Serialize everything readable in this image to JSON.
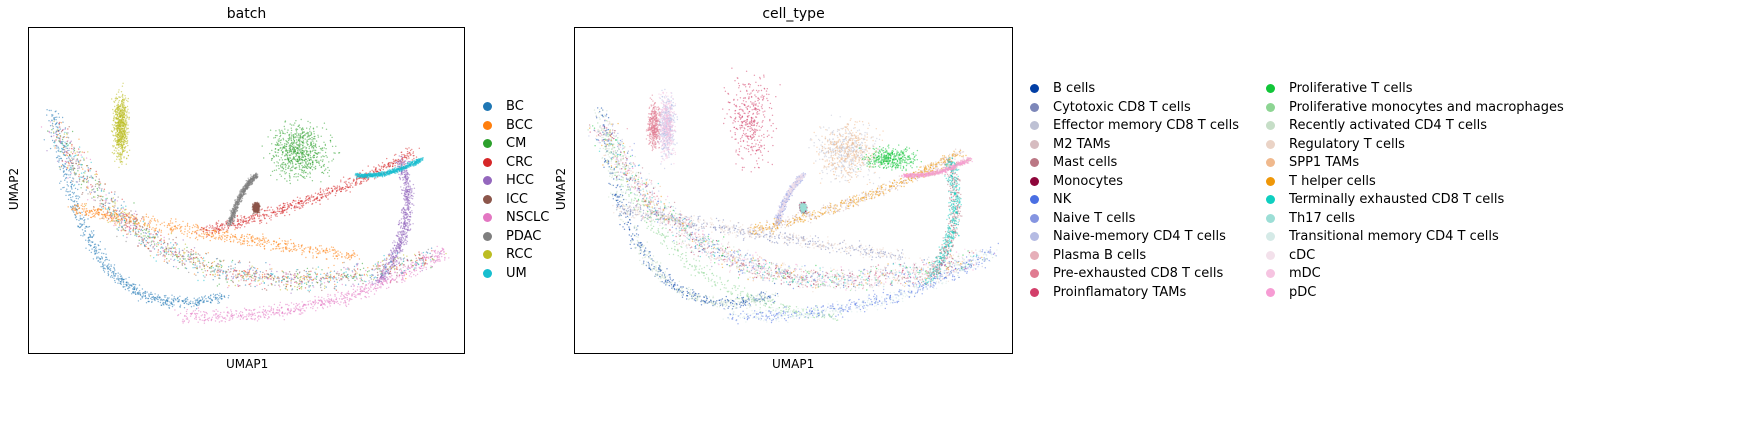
{
  "chart_data": [
    {
      "type": "scatter",
      "title": "batch",
      "xlabel": "UMAP1",
      "ylabel": "UMAP2",
      "grid": false,
      "legend_placement": "right",
      "series": [
        {
          "name": "BC",
          "color": "#1f77b4"
        },
        {
          "name": "BCC",
          "color": "#ff7f0e"
        },
        {
          "name": "CM",
          "color": "#2ca02c"
        },
        {
          "name": "CRC",
          "color": "#d62728"
        },
        {
          "name": "HCC",
          "color": "#9467bd"
        },
        {
          "name": "ICC",
          "color": "#8c564b"
        },
        {
          "name": "NSCLC",
          "color": "#e377c2"
        },
        {
          "name": "PDAC",
          "color": "#7f7f7f"
        },
        {
          "name": "RCC",
          "color": "#bcbd22"
        },
        {
          "name": "UM",
          "color": "#17becf"
        }
      ]
    },
    {
      "type": "scatter",
      "title": "cell_type",
      "xlabel": "UMAP1",
      "ylabel": "UMAP2",
      "grid": false,
      "legend_placement": "right",
      "series": [
        {
          "name": "B cells",
          "color": "#023fa5"
        },
        {
          "name": "Cytotoxic CD8 T cells",
          "color": "#7d87b9"
        },
        {
          "name": "Effector memory CD8 T cells",
          "color": "#bec1d4"
        },
        {
          "name": "M2 TAMs",
          "color": "#d6bcc0"
        },
        {
          "name": "Mast cells",
          "color": "#bb7784"
        },
        {
          "name": "Monocytes",
          "color": "#8e063b"
        },
        {
          "name": "NK",
          "color": "#4a6fe3"
        },
        {
          "name": "Naive T cells",
          "color": "#8595e1"
        },
        {
          "name": "Naive-memory CD4 T cells",
          "color": "#b5bbe3"
        },
        {
          "name": "Plasma B cells",
          "color": "#e6afb9"
        },
        {
          "name": "Pre-exhausted CD8 T cells",
          "color": "#e07b91"
        },
        {
          "name": "Proinflamatory TAMs",
          "color": "#d33f6a"
        },
        {
          "name": "Proliferative T cells",
          "color": "#11c638"
        },
        {
          "name": "Proliferative monocytes and macrophages",
          "color": "#8dd593"
        },
        {
          "name": "Recently activated CD4 T cells",
          "color": "#c6dec7"
        },
        {
          "name": "Regulatory T cells",
          "color": "#ead3c6"
        },
        {
          "name": "SPP1 TAMs",
          "color": "#f0b98d"
        },
        {
          "name": "T helper cells",
          "color": "#ef9708"
        },
        {
          "name": "Terminally exhausted CD8 T cells",
          "color": "#0fcfc0"
        },
        {
          "name": "Th17 cells",
          "color": "#9cded6"
        },
        {
          "name": "Transitional memory CD4 T cells",
          "color": "#d5eae7"
        },
        {
          "name": "cDC",
          "color": "#f3e1eb"
        },
        {
          "name": "mDC",
          "color": "#f6c4e1"
        },
        {
          "name": "pDC",
          "color": "#f79cd4"
        }
      ]
    }
  ]
}
